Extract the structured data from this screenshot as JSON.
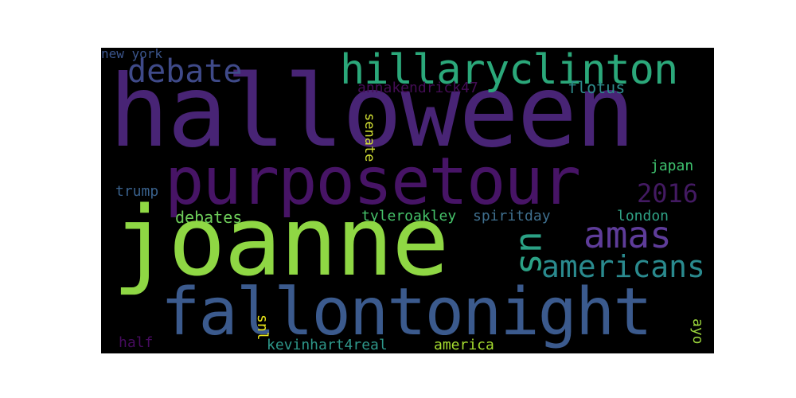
{
  "word_cloud": {
    "background": "#000000",
    "words": {
      "halloween": {
        "text": "halloween",
        "color": "#482475"
      },
      "purposetour": {
        "text": "purposetour",
        "color": "#471466"
      },
      "joanne": {
        "text": "joanne",
        "color": "#8fd744"
      },
      "fallontonight": {
        "text": "fallontonight",
        "color": "#3b5a8d"
      },
      "hillaryclinton": {
        "text": "hillaryclinton",
        "color": "#2ba87a"
      },
      "debate": {
        "text": "debate",
        "color": "#3f4a89"
      },
      "new_york": {
        "text": "new york",
        "color": "#3b558c"
      },
      "annakendrick47": {
        "text": "annakendrick47",
        "color": "#440d55"
      },
      "flotus": {
        "text": "flotus",
        "color": "#2d8b8b"
      },
      "senate": {
        "text": "senate",
        "color": "#d4e234"
      },
      "japan": {
        "text": "japan",
        "color": "#3ec16e"
      },
      "2016": {
        "text": "2016",
        "color": "#431a62"
      },
      "trump": {
        "text": "trump",
        "color": "#39618c"
      },
      "us": {
        "text": "us",
        "color": "#2ba185"
      },
      "amas": {
        "text": "amas",
        "color": "#5e3c99"
      },
      "debates": {
        "text": "debates",
        "color": "#6ecd5a"
      },
      "tyleroakley": {
        "text": "tyleroakley",
        "color": "#46c36a"
      },
      "spiritday": {
        "text": "spiritday",
        "color": "#3f6f8e"
      },
      "london": {
        "text": "london",
        "color": "#2fa285"
      },
      "americans": {
        "text": "americans",
        "color": "#2a8a8e"
      },
      "snl": {
        "text": "snl",
        "color": "#e8e419"
      },
      "ayo": {
        "text": "ayo",
        "color": "#9ad43c"
      },
      "half": {
        "text": "half",
        "color": "#460b5e"
      },
      "kevinhart4real": {
        "text": "kevinhart4real",
        "color": "#2e978a"
      },
      "america": {
        "text": "america",
        "color": "#a5dc2f"
      }
    }
  }
}
